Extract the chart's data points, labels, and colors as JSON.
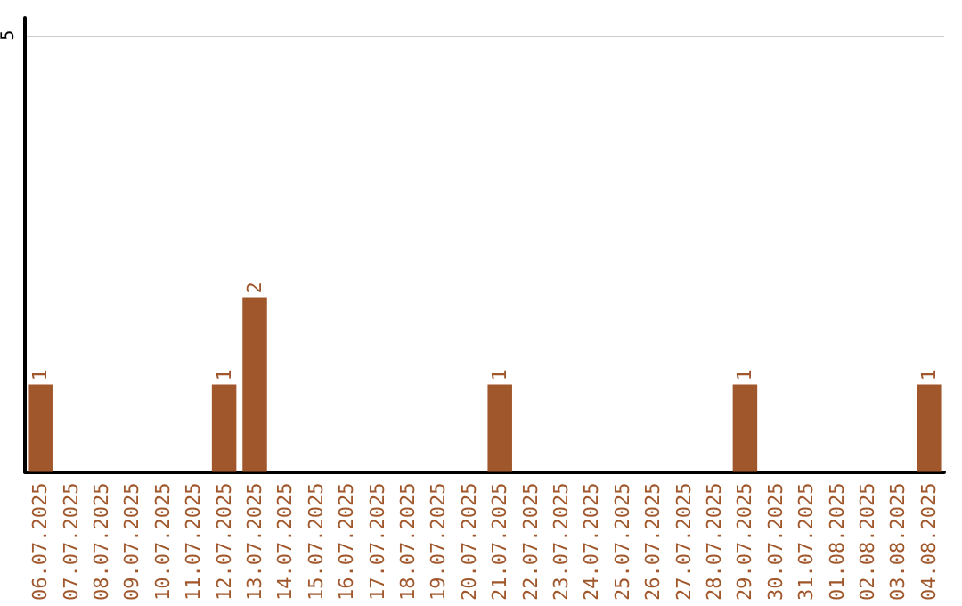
{
  "chart_data": {
    "type": "bar",
    "categories": [
      "06.07.2025",
      "07.07.2025",
      "08.07.2025",
      "09.07.2025",
      "10.07.2025",
      "11.07.2025",
      "12.07.2025",
      "13.07.2025",
      "14.07.2025",
      "15.07.2025",
      "16.07.2025",
      "17.07.2025",
      "18.07.2025",
      "19.07.2025",
      "20.07.2025",
      "21.07.2025",
      "22.07.2025",
      "23.07.2025",
      "24.07.2025",
      "25.07.2025",
      "26.07.2025",
      "27.07.2025",
      "28.07.2025",
      "29.07.2025",
      "30.07.2025",
      "31.07.2025",
      "01.08.2025",
      "02.08.2025",
      "03.08.2025",
      "04.08.2025"
    ],
    "values": [
      1,
      0,
      0,
      0,
      0,
      0,
      1,
      2,
      0,
      0,
      0,
      0,
      0,
      0,
      0,
      1,
      0,
      0,
      0,
      0,
      0,
      0,
      0,
      1,
      0,
      0,
      0,
      0,
      0,
      1
    ],
    "value_labels": [
      "1",
      null,
      null,
      null,
      null,
      null,
      "1",
      "2",
      null,
      null,
      null,
      null,
      null,
      null,
      null,
      "1",
      null,
      null,
      null,
      null,
      null,
      null,
      null,
      "1",
      null,
      null,
      null,
      null,
      null,
      "1"
    ],
    "color": "#a0572b",
    "ylim": [
      0,
      5.2
    ],
    "yticks": [
      5
    ],
    "grid": "y"
  }
}
